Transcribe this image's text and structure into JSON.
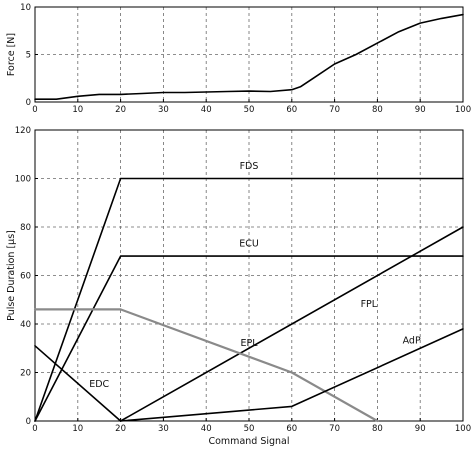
{
  "chart_data": [
    {
      "type": "line",
      "title": "",
      "xlabel": "",
      "ylabel": "Force [N]",
      "xlim": [
        0,
        100
      ],
      "ylim": [
        0,
        10
      ],
      "xticks": [
        0,
        10,
        20,
        30,
        40,
        50,
        60,
        70,
        80,
        90,
        100
      ],
      "yticks": [
        0,
        5,
        10
      ],
      "grid": true,
      "series": [
        {
          "x": [
            0,
            5,
            10,
            15,
            20,
            25,
            30,
            35,
            40,
            45,
            50,
            55,
            60,
            62,
            65,
            70,
            75,
            80,
            85,
            90,
            95,
            100
          ],
          "y": [
            0.3,
            0.3,
            0.6,
            0.8,
            0.8,
            0.9,
            1.0,
            1.0,
            1.05,
            1.1,
            1.15,
            1.1,
            1.3,
            1.6,
            2.5,
            4.0,
            5.0,
            6.2,
            7.4,
            8.3,
            8.8,
            9.2
          ]
        }
      ]
    },
    {
      "type": "line",
      "title": "",
      "xlabel": "Command Signal",
      "ylabel": "Pulse Duration [µs]",
      "xlim": [
        0,
        100
      ],
      "ylim": [
        0,
        120
      ],
      "xticks": [
        0,
        10,
        20,
        30,
        40,
        50,
        60,
        70,
        80,
        90,
        100
      ],
      "yticks": [
        0,
        20,
        40,
        60,
        80,
        100,
        120
      ],
      "grid": true,
      "series": [
        {
          "name": "FDS",
          "x": [
            0,
            20,
            100
          ],
          "y": [
            0,
            100,
            100
          ],
          "label_x": 50,
          "label_y": 104
        },
        {
          "name": "ECU",
          "x": [
            0,
            20,
            100
          ],
          "y": [
            0,
            68,
            68
          ],
          "label_x": 50,
          "label_y": 72
        },
        {
          "name": "FPL",
          "x": [
            20,
            100
          ],
          "y": [
            0,
            80
          ],
          "label_x": 78,
          "label_y": 47
        },
        {
          "name": "EPL",
          "x": [
            0,
            20,
            60,
            80
          ],
          "y": [
            46,
            46,
            20,
            0
          ],
          "label_x": 50,
          "label_y": 31,
          "gray": true
        },
        {
          "name": "AdP",
          "x": [
            20,
            60,
            100
          ],
          "y": [
            0,
            6,
            38
          ],
          "label_x": 88,
          "label_y": 32
        },
        {
          "name": "EDC",
          "x": [
            0,
            20
          ],
          "y": [
            31,
            0
          ],
          "label_x": 15,
          "label_y": 14
        }
      ]
    }
  ]
}
